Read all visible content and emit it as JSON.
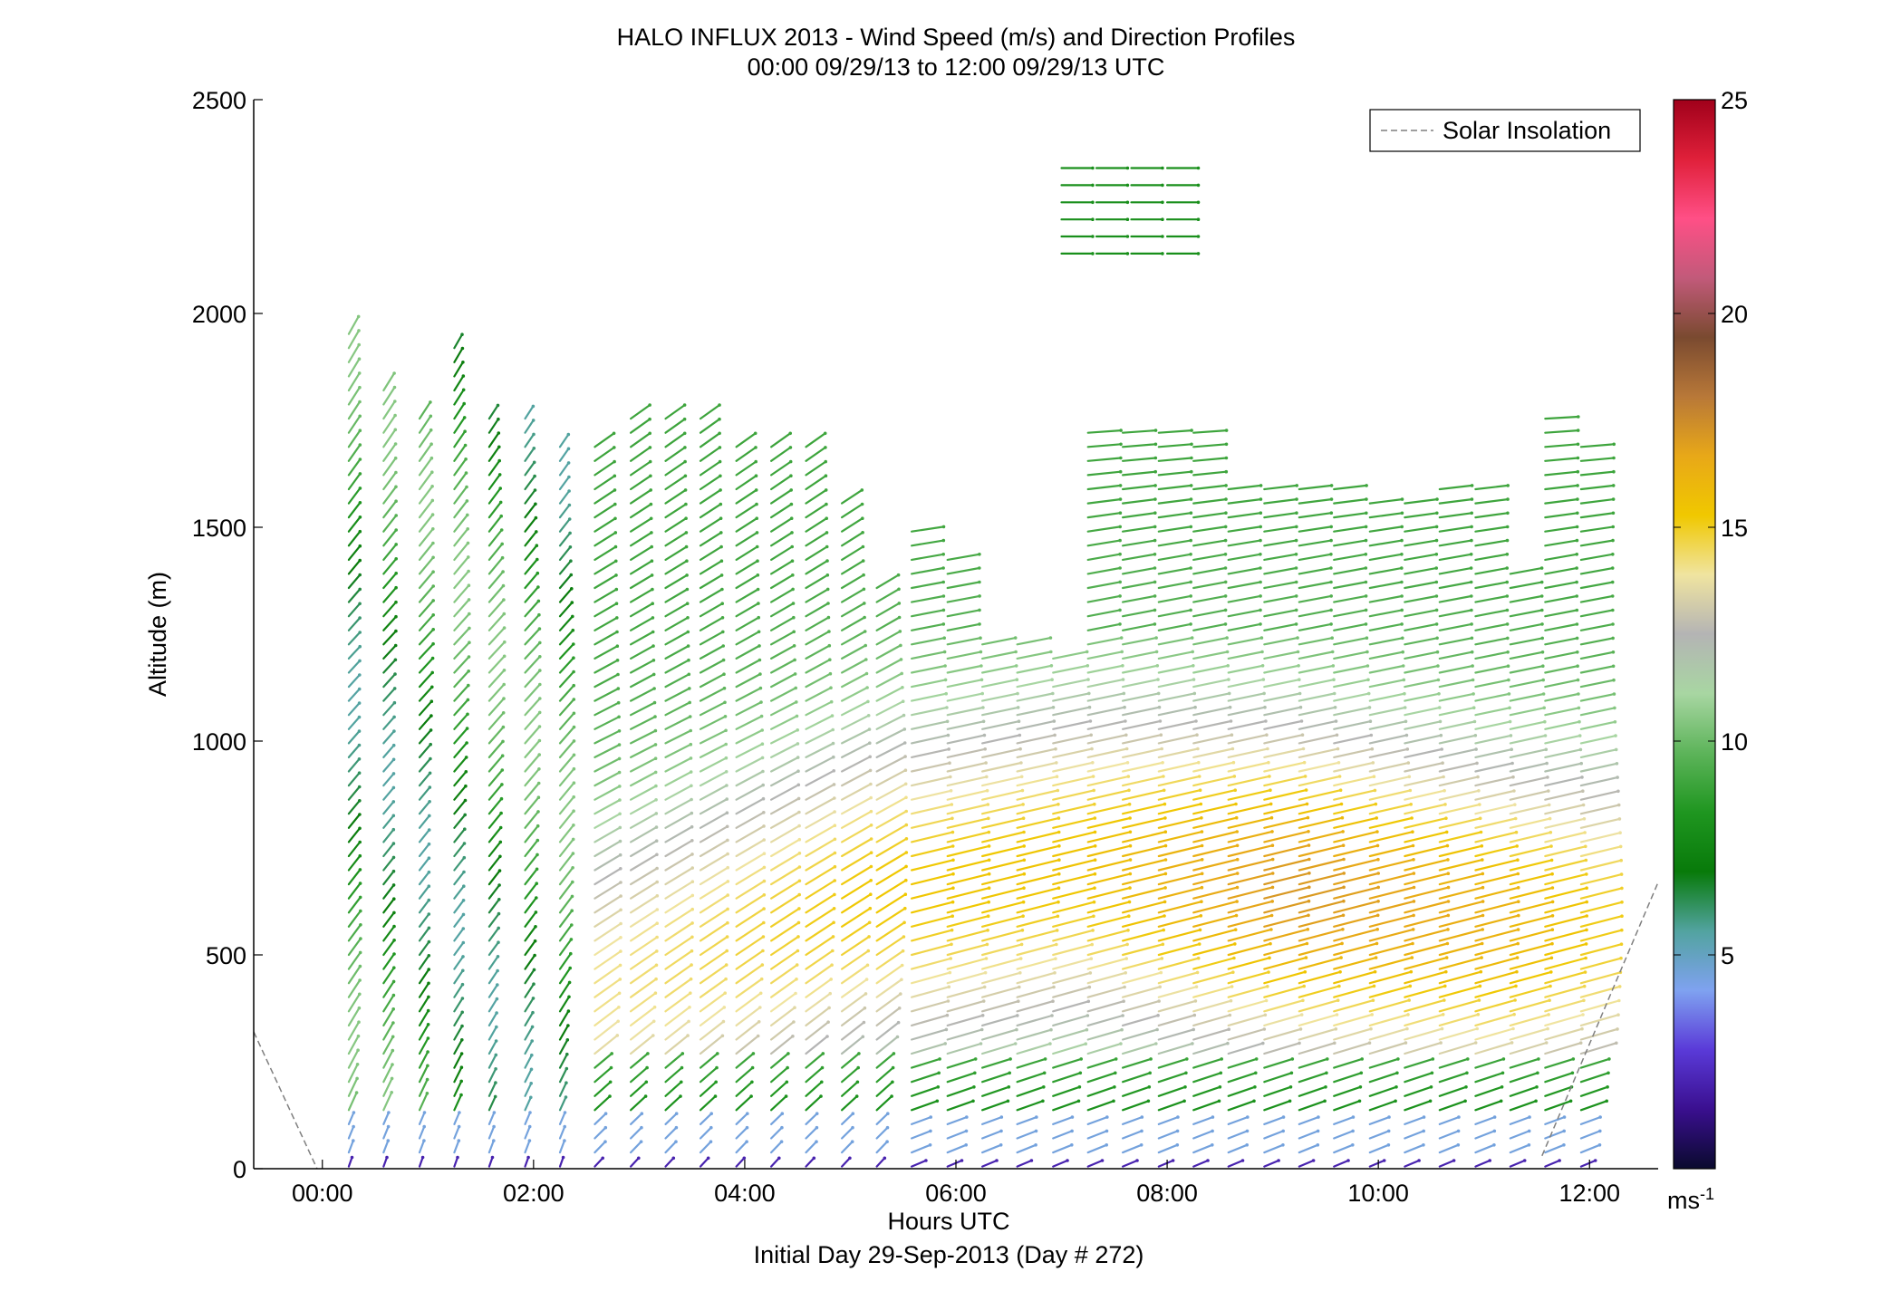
{
  "chart_data": {
    "type": "wind-barb-profile",
    "title": "HALO INFLUX 2013 - Wind Speed (m/s) and Direction Profiles",
    "subtitle": "00:00 09/29/13 to 12:00 09/29/13  UTC",
    "xlabel": "Hours UTC",
    "xlabel2": "Initial Day 29-Sep-2013 (Day # 272)",
    "ylabel": "Altitude (m)",
    "xlim": [
      -0.65,
      12.65
    ],
    "ylim": [
      0,
      2500
    ],
    "x_ticks": [
      0,
      2,
      4,
      6,
      8,
      10,
      12
    ],
    "x_tick_labels": [
      "00:00",
      "02:00",
      "04:00",
      "06:00",
      "08:00",
      "10:00",
      "12:00"
    ],
    "y_ticks": [
      0,
      500,
      1000,
      1500,
      2000,
      2500
    ],
    "y_tick_labels": [
      "0",
      "500",
      "1000",
      "1500",
      "2000",
      "2500"
    ],
    "legend": {
      "entries": [
        "Solar Insolation"
      ],
      "position": "top-right",
      "line_style": "dashed",
      "line_color": "#7f7f7f"
    },
    "colorbar": {
      "range": [
        0,
        25
      ],
      "ticks": [
        5,
        10,
        15,
        20,
        25
      ],
      "tick_labels": [
        "5",
        "10",
        "15",
        "20",
        "25"
      ],
      "unit_label": "ms",
      "unit_exponent": "-1",
      "colors": [
        "#0a0a2e",
        "#3a0f8f",
        "#5a3ad8",
        "#7fa2f0",
        "#52a3a0",
        "#087a0a",
        "#1f9620",
        "#5db45a",
        "#a8d6a2",
        "#b4b4b4",
        "#f0e4a0",
        "#f0c800",
        "#e8a818",
        "#b87838",
        "#7a4a30",
        "#c25a7a",
        "#ff4f86",
        "#e0203a",
        "#a0001a"
      ]
    },
    "solar_insolation": [
      [
        -0.65,
        320
      ],
      [
        -0.05,
        0
      ],
      [
        11.55,
        30
      ],
      [
        12.65,
        670
      ]
    ],
    "profile_times": [
      0.25,
      0.58,
      0.92,
      1.25,
      1.58,
      1.92,
      2.25,
      2.58,
      2.92,
      3.25,
      3.58,
      3.92,
      4.25,
      4.58,
      4.92,
      5.25,
      5.58,
      5.92,
      6.25,
      6.58,
      6.92,
      7.25,
      7.58,
      7.92,
      8.25,
      8.58,
      8.92,
      9.25,
      9.58,
      9.92,
      10.25,
      10.58,
      10.92,
      11.25,
      11.58,
      11.92
    ],
    "profile_tops_m": [
      1960,
      1830,
      1780,
      1920,
      1770,
      1770,
      1700,
      1700,
      1770,
      1770,
      1770,
      1700,
      1700,
      1700,
      1570,
      1360,
      1490,
      1450,
      1240,
      1230,
      1200,
      1730,
      1730,
      1730,
      1730,
      1610,
      1610,
      1610,
      1610,
      1570,
      1570,
      1610,
      1610,
      1400,
      1760,
      1700
    ],
    "upper_layer": {
      "times": [
        7.0,
        7.33,
        7.66,
        8.0
      ],
      "altitudes_m": [
        2140,
        2180,
        2220,
        2260,
        2300,
        2340
      ],
      "speed_ms": 8,
      "direction_deg": 270
    },
    "series_description_levels_m": [
      0,
      200,
      600,
      1100,
      1600,
      2000
    ],
    "representative_speed_ms": [
      2,
      7,
      15,
      11,
      8,
      8
    ],
    "representative_direction_deg": [
      230,
      215,
      240,
      225,
      215,
      200
    ]
  }
}
